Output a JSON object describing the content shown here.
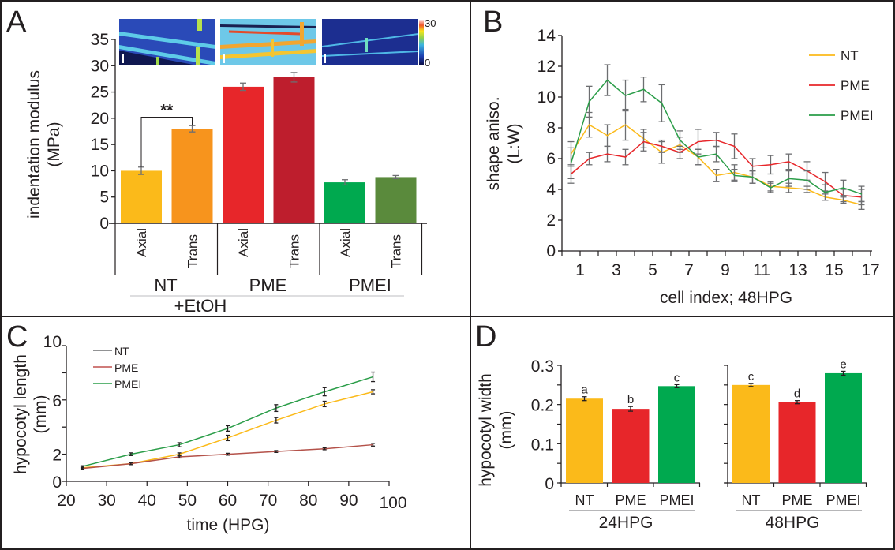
{
  "panels": {
    "A": {
      "letter": "A"
    },
    "B": {
      "letter": "B"
    },
    "C": {
      "letter": "C"
    },
    "D": {
      "letter": "D"
    }
  },
  "heatmap": {
    "colorbar_max": "30",
    "colorbar_min": "0",
    "images": [
      "NT",
      "PME",
      "PMEI"
    ]
  },
  "chart_data": [
    {
      "id": "A",
      "type": "bar",
      "ylabel_line1": "indentation modulus",
      "ylabel_line2": "(MPa)",
      "ylim": [
        0,
        35
      ],
      "yticks": [
        "0",
        "5",
        "10",
        "15",
        "20",
        "25",
        "30",
        "35"
      ],
      "categories": [
        "Axial",
        "Trans",
        "Axial",
        "Trans",
        "Axial",
        "Trans"
      ],
      "groups": [
        "NT",
        "PME",
        "PMEI"
      ],
      "group_caption": "+EtOH",
      "values": [
        10.0,
        18.0,
        26.0,
        27.8,
        7.8,
        8.8
      ],
      "errors": [
        0.7,
        0.6,
        0.7,
        0.9,
        0.5,
        0.3
      ],
      "colors": [
        "#fbba1a",
        "#f7941d",
        "#e7262a",
        "#be1e2d",
        "#00a94f",
        "#5a8a3c"
      ],
      "annotation": {
        "text": "**",
        "between": [
          0,
          1
        ]
      }
    },
    {
      "id": "B",
      "type": "line",
      "ylabel_line1": "shape aniso.",
      "ylabel_line2": "(L:W)",
      "xlabel": "cell index; 48HPG",
      "ylim": [
        0,
        14
      ],
      "yticks": [
        "0",
        "2",
        "4",
        "6",
        "8",
        "10",
        "12",
        "14"
      ],
      "xlim": [
        0,
        17
      ],
      "xticks": [
        "1",
        "3",
        "5",
        "7",
        "9",
        "11",
        "13",
        "15",
        "17"
      ],
      "x": [
        0.5,
        1.5,
        2.5,
        3.5,
        4.5,
        5.5,
        6.5,
        7.5,
        8.5,
        9.5,
        10.5,
        11.5,
        12.5,
        13.5,
        14.5,
        15.5,
        16.5
      ],
      "series": [
        {
          "name": "NT",
          "color": "#fbba1a",
          "values": [
            6.3,
            8.2,
            7.5,
            8.2,
            7.3,
            6.4,
            6.9,
            6.1,
            4.9,
            5.1,
            4.8,
            4.2,
            4.1,
            4.0,
            3.5,
            3.3,
            3.0
          ],
          "errors": [
            0.8,
            0.8,
            0.7,
            1.0,
            0.6,
            0.7,
            0.5,
            0.5,
            0.4,
            0.5,
            0.4,
            0.3,
            0.3,
            0.2,
            0.2,
            0.2,
            0.3
          ]
        },
        {
          "name": "PME",
          "color": "#e7262a",
          "values": [
            5.0,
            6.0,
            6.3,
            6.1,
            7.1,
            6.8,
            6.4,
            7.1,
            7.2,
            6.8,
            5.5,
            5.6,
            5.8,
            5.2,
            4.5,
            3.6,
            3.5
          ],
          "errors": [
            0.6,
            0.4,
            0.5,
            0.5,
            0.6,
            0.4,
            0.4,
            0.8,
            0.5,
            0.8,
            0.5,
            0.6,
            0.5,
            0.6,
            0.6,
            0.4,
            0.5
          ]
        },
        {
          "name": "PMEI",
          "color": "#2a9d48",
          "values": [
            5.7,
            9.7,
            11.1,
            10.1,
            10.5,
            9.6,
            7.2,
            6.1,
            6.3,
            4.9,
            4.8,
            4.1,
            4.7,
            4.6,
            3.8,
            4.1,
            3.7
          ],
          "errors": [
            1.0,
            1.0,
            1.0,
            1.0,
            0.8,
            1.2,
            0.6,
            0.5,
            0.5,
            0.4,
            0.4,
            0.3,
            0.5,
            0.6,
            0.5,
            0.5,
            0.5
          ]
        }
      ],
      "legend": "top-right"
    },
    {
      "id": "C",
      "type": "line",
      "ylabel_line1": "hypocotyl length",
      "ylabel_line2": "(mm)",
      "xlabel": "time (HPG)",
      "ylim": [
        0,
        10
      ],
      "yticks": [
        "0",
        "2",
        "6",
        "10"
      ],
      "ytick_values": [
        0,
        2,
        6,
        10
      ],
      "yminor": [
        4,
        8
      ],
      "xlim": [
        20,
        100
      ],
      "xticks": [
        "20",
        "30",
        "40",
        "50",
        "60",
        "70",
        "80",
        "90",
        "100"
      ],
      "x": [
        24,
        36,
        48,
        60,
        72,
        84,
        96
      ],
      "series": [
        {
          "name": "NT",
          "legend_color": "#6d6e71",
          "color": "#fbba1a",
          "values": [
            1.0,
            1.3,
            2.0,
            3.2,
            4.5,
            5.7,
            6.6
          ],
          "errors": [
            0.05,
            0.07,
            0.1,
            0.2,
            0.2,
            0.2,
            0.15
          ]
        },
        {
          "name": "PME",
          "legend_color": "#c1504f",
          "color": "#b4524a",
          "values": [
            0.95,
            1.3,
            1.8,
            2.0,
            2.2,
            2.4,
            2.7
          ],
          "errors": [
            0.05,
            0.07,
            0.08,
            0.07,
            0.07,
            0.07,
            0.1
          ]
        },
        {
          "name": "PMEI",
          "legend_color": "#2a9d48",
          "color": "#2a9d48",
          "values": [
            1.1,
            2.0,
            2.7,
            3.9,
            5.4,
            6.6,
            7.7
          ],
          "errors": [
            0.05,
            0.1,
            0.15,
            0.2,
            0.25,
            0.3,
            0.35
          ]
        }
      ],
      "legend": "top-left"
    },
    {
      "id": "D",
      "type": "bar",
      "ylabel_line1": "hypocotyl width",
      "ylabel_line2": "(mm)",
      "ylim": [
        0,
        0.3
      ],
      "yticks": [
        "0",
        "0.1",
        "0.2",
        "0.3"
      ],
      "subcharts": [
        {
          "caption": "24HPG",
          "categories": [
            "NT",
            "PME",
            "PMEI"
          ],
          "values": [
            0.215,
            0.189,
            0.247
          ],
          "errors": [
            0.005,
            0.006,
            0.004
          ],
          "letters": [
            "a",
            "b",
            "c"
          ]
        },
        {
          "caption": "48HPG",
          "categories": [
            "NT",
            "PME",
            "PMEI"
          ],
          "values": [
            0.25,
            0.206,
            0.28
          ],
          "errors": [
            0.004,
            0.004,
            0.005
          ],
          "letters": [
            "c",
            "d",
            "e"
          ]
        }
      ],
      "colors": [
        "#fbba1a",
        "#e7262a",
        "#00a94f"
      ]
    }
  ]
}
